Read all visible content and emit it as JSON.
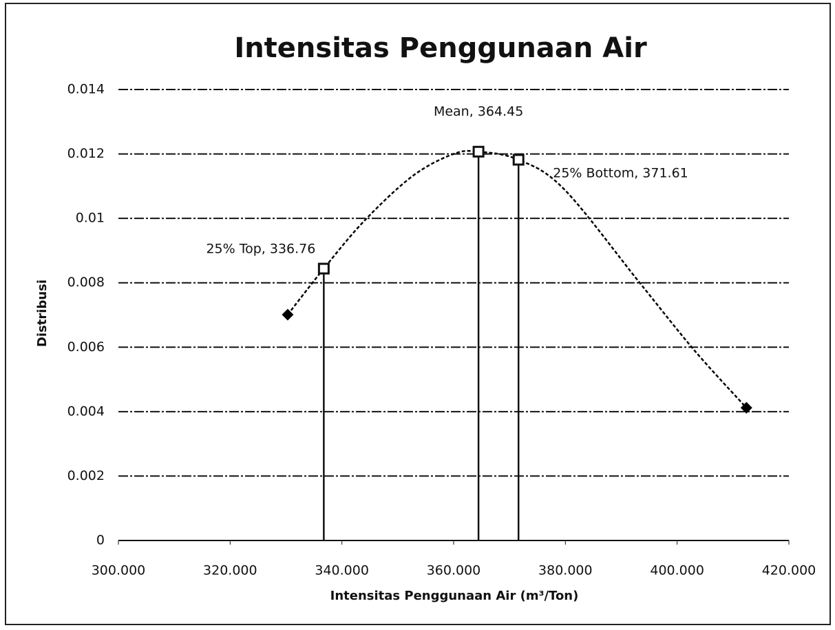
{
  "chart_data": {
    "type": "line",
    "title": "Intensitas Penggunaan Air",
    "x_label": "Intensitas Penggunaan Air (m³/Ton)",
    "y_label": "Distribusi",
    "series": [
      {
        "color": "#000000",
        "x": [
          330.3,
          336.76,
          344.1,
          352.7,
          360,
          364.45,
          371.61,
          379.8,
          393.3,
          403.2,
          412.4
        ],
        "values": [
          0.00701,
          0.00844,
          0.00994,
          0.01132,
          0.012,
          0.01207,
          0.01182,
          0.0109,
          0.008,
          0.00588,
          0.00412
        ]
      }
    ],
    "annotations": [
      {
        "label": "25% Top, 336.76",
        "x": 336.76,
        "y": 0.00844
      },
      {
        "label": "Mean, 364.45",
        "x": 364.45,
        "y": 0.01207
      },
      {
        "label": "25% Bottom, 371.61",
        "x": 371.61,
        "y": 0.01182
      }
    ],
    "xlim": [
      300,
      420
    ],
    "xticks": [
      {
        "value": 300,
        "label": "300.000"
      },
      {
        "value": 320,
        "label": "320.000"
      },
      {
        "value": 340,
        "label": "340.000"
      },
      {
        "value": 360,
        "label": "360.000"
      },
      {
        "value": 380,
        "label": "380.000"
      },
      {
        "value": 400,
        "label": "400.000"
      },
      {
        "value": 420,
        "label": "420.000"
      }
    ],
    "ylim": [
      0,
      0.014
    ],
    "yticks": [
      0,
      0.002,
      0.004,
      0.006,
      0.008,
      0.01,
      0.012,
      0.014
    ],
    "grid": true
  }
}
